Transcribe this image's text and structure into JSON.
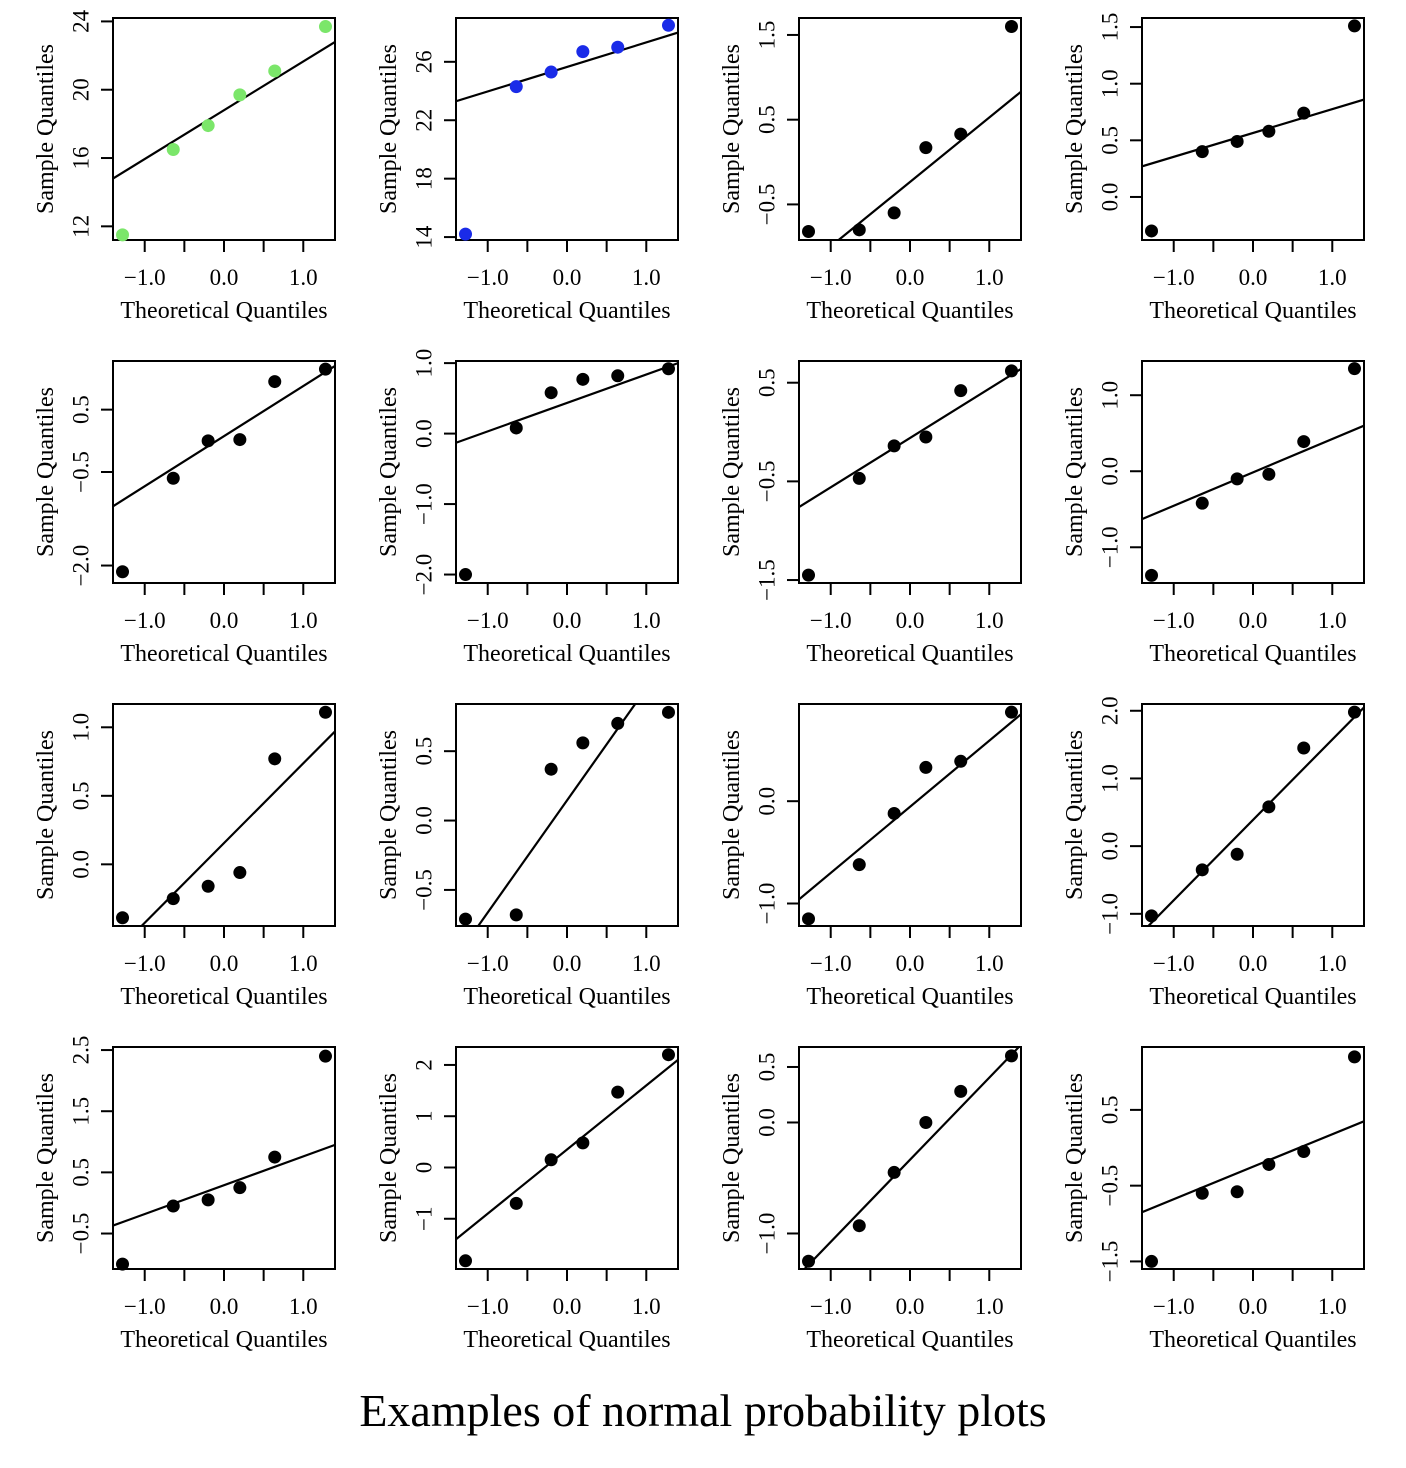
{
  "caption": "Examples of normal probability plots",
  "chart_data": [
    {
      "type": "scatter",
      "xlabel": "Theoretical Quantiles",
      "ylabel": "Sample Quantiles",
      "point_color": "#7be66a",
      "x": [
        -1.28,
        -0.64,
        -0.2,
        0.2,
        0.64,
        1.28
      ],
      "y": [
        11.5,
        16.5,
        17.9,
        19.7,
        21.1,
        23.7
      ],
      "xlim": [
        -1.4,
        1.4
      ],
      "ylim": [
        11.2,
        24.2
      ],
      "xticks": [
        -1.0,
        0.0,
        1.0
      ],
      "xtick_labels": [
        "−1.0",
        "0.0",
        "1.0"
      ],
      "yticks": [
        12,
        16,
        20,
        24
      ],
      "ytick_labels": [
        "12",
        "16",
        "20",
        "24"
      ],
      "line": [
        [
          -1.4,
          14.8
        ],
        [
          1.4,
          22.8
        ]
      ]
    },
    {
      "type": "scatter",
      "xlabel": "Theoretical Quantiles",
      "ylabel": "Sample Quantiles",
      "point_color": "#1a2be8",
      "x": [
        -1.28,
        -0.64,
        -0.2,
        0.2,
        0.64,
        1.28
      ],
      "y": [
        14.2,
        24.3,
        25.3,
        26.7,
        27.0,
        28.5
      ],
      "xlim": [
        -1.4,
        1.4
      ],
      "ylim": [
        13.8,
        29.0
      ],
      "xticks": [
        -1.0,
        0.0,
        1.0
      ],
      "xtick_labels": [
        "−1.0",
        "0.0",
        "1.0"
      ],
      "yticks": [
        14,
        18,
        22,
        26
      ],
      "ytick_labels": [
        "14",
        "18",
        "22",
        "26"
      ],
      "line": [
        [
          -1.4,
          23.3
        ],
        [
          1.4,
          28.0
        ]
      ]
    },
    {
      "type": "scatter",
      "xlabel": "Theoretical Quantiles",
      "ylabel": "Sample Quantiles",
      "point_color": "#000000",
      "x": [
        -1.28,
        -0.64,
        -0.2,
        0.2,
        0.64,
        1.28
      ],
      "y": [
        -0.82,
        -0.8,
        -0.6,
        0.17,
        0.33,
        1.6
      ],
      "xlim": [
        -1.4,
        1.4
      ],
      "ylim": [
        -0.92,
        1.7
      ],
      "xticks": [
        -1.0,
        0.0,
        1.0
      ],
      "xtick_labels": [
        "−1.0",
        "0.0",
        "1.0"
      ],
      "yticks": [
        -0.5,
        0.5,
        1.5
      ],
      "ytick_labels": [
        "−0.5",
        "0.5",
        "1.5"
      ],
      "line": [
        [
          -1.4,
          -1.3
        ],
        [
          1.4,
          0.83
        ]
      ]
    },
    {
      "type": "scatter",
      "xlabel": "Theoretical Quantiles",
      "ylabel": "Sample Quantiles",
      "point_color": "#000000",
      "x": [
        -1.28,
        -0.64,
        -0.2,
        0.2,
        0.64,
        1.28
      ],
      "y": [
        -0.3,
        0.4,
        0.49,
        0.58,
        0.74,
        1.51
      ],
      "xlim": [
        -1.4,
        1.4
      ],
      "ylim": [
        -0.38,
        1.58
      ],
      "xticks": [
        -1.0,
        0.0,
        1.0
      ],
      "xtick_labels": [
        "−1.0",
        "0.0",
        "1.0"
      ],
      "yticks": [
        0.0,
        0.5,
        1.0,
        1.5
      ],
      "ytick_labels": [
        "0.0",
        "0.5",
        "1.0",
        "1.5"
      ],
      "line": [
        [
          -1.4,
          0.27
        ],
        [
          1.4,
          0.86
        ]
      ]
    },
    {
      "type": "scatter",
      "xlabel": "Theoretical Quantiles",
      "ylabel": "Sample Quantiles",
      "point_color": "#000000",
      "x": [
        -1.28,
        -0.64,
        -0.2,
        0.2,
        0.64,
        1.28
      ],
      "y": [
        -2.1,
        -0.6,
        0.0,
        0.02,
        0.95,
        1.15
      ],
      "xlim": [
        -1.4,
        1.4
      ],
      "ylim": [
        -2.28,
        1.28
      ],
      "xticks": [
        -1.0,
        0.0,
        1.0
      ],
      "xtick_labels": [
        "−1.0",
        "0.0",
        "1.0"
      ],
      "yticks": [
        -2.0,
        -0.5,
        0.5
      ],
      "ytick_labels": [
        "−2.0",
        "−0.5",
        "0.5"
      ],
      "line": [
        [
          -1.4,
          -1.05
        ],
        [
          1.4,
          1.2
        ]
      ]
    },
    {
      "type": "scatter",
      "xlabel": "Theoretical Quantiles",
      "ylabel": "Sample Quantiles",
      "point_color": "#000000",
      "x": [
        -1.28,
        -0.64,
        -0.2,
        0.2,
        0.64,
        1.28
      ],
      "y": [
        -2.0,
        0.08,
        0.58,
        0.77,
        0.82,
        0.92
      ],
      "xlim": [
        -1.4,
        1.4
      ],
      "ylim": [
        -2.12,
        1.03
      ],
      "xticks": [
        -1.0,
        0.0,
        1.0
      ],
      "xtick_labels": [
        "−1.0",
        "0.0",
        "1.0"
      ],
      "yticks": [
        -2.0,
        -1.0,
        0.0,
        1.0
      ],
      "ytick_labels": [
        "−2.0",
        "−1.0",
        "0.0",
        "1.0"
      ],
      "line": [
        [
          -1.4,
          -0.13
        ],
        [
          1.4,
          1.0
        ]
      ]
    },
    {
      "type": "scatter",
      "xlabel": "Theoretical Quantiles",
      "ylabel": "Sample Quantiles",
      "point_color": "#000000",
      "x": [
        -1.28,
        -0.64,
        -0.2,
        0.2,
        0.64,
        1.28
      ],
      "y": [
        -1.45,
        -0.47,
        -0.14,
        -0.05,
        0.42,
        0.62
      ],
      "xlim": [
        -1.4,
        1.4
      ],
      "ylim": [
        -1.53,
        0.72
      ],
      "xticks": [
        -1.0,
        0.0,
        1.0
      ],
      "xtick_labels": [
        "−1.0",
        "0.0",
        "1.0"
      ],
      "yticks": [
        -1.5,
        -0.5,
        0.5
      ],
      "ytick_labels": [
        "−1.5",
        "−0.5",
        "0.5"
      ],
      "line": [
        [
          -1.4,
          -0.76
        ],
        [
          1.4,
          0.64
        ]
      ]
    },
    {
      "type": "scatter",
      "xlabel": "Theoretical Quantiles",
      "ylabel": "Sample Quantiles",
      "point_color": "#000000",
      "x": [
        -1.28,
        -0.64,
        -0.2,
        0.2,
        0.64,
        1.28
      ],
      "y": [
        -1.37,
        -0.42,
        -0.1,
        -0.04,
        0.39,
        1.35
      ],
      "xlim": [
        -1.4,
        1.4
      ],
      "ylim": [
        -1.47,
        1.45
      ],
      "xticks": [
        -1.0,
        0.0,
        1.0
      ],
      "xtick_labels": [
        "−1.0",
        "0.0",
        "1.0"
      ],
      "yticks": [
        -1.0,
        0.0,
        1.0
      ],
      "ytick_labels": [
        "−1.0",
        "0.0",
        "1.0"
      ],
      "line": [
        [
          -1.4,
          -0.63
        ],
        [
          1.4,
          0.6
        ]
      ]
    },
    {
      "type": "scatter",
      "xlabel": "Theoretical Quantiles",
      "ylabel": "Sample Quantiles",
      "point_color": "#000000",
      "x": [
        -1.28,
        -0.64,
        -0.2,
        0.2,
        0.64,
        1.28
      ],
      "y": [
        -0.39,
        -0.25,
        -0.16,
        -0.06,
        0.77,
        1.11
      ],
      "xlim": [
        -1.4,
        1.4
      ],
      "ylim": [
        -0.45,
        1.17
      ],
      "xticks": [
        -1.0,
        0.0,
        1.0
      ],
      "xtick_labels": [
        "−1.0",
        "0.0",
        "1.0"
      ],
      "yticks": [
        0.0,
        0.5,
        1.0
      ],
      "ytick_labels": [
        "0.0",
        "0.5",
        "1.0"
      ],
      "line": [
        [
          -1.04,
          -0.45
        ],
        [
          1.4,
          0.97
        ]
      ]
    },
    {
      "type": "scatter",
      "xlabel": "Theoretical Quantiles",
      "ylabel": "Sample Quantiles",
      "point_color": "#000000",
      "x": [
        -1.28,
        -0.64,
        -0.2,
        0.2,
        0.64,
        1.28
      ],
      "y": [
        -0.71,
        -0.68,
        0.37,
        0.56,
        0.7,
        0.78
      ],
      "xlim": [
        -1.4,
        1.4
      ],
      "ylim": [
        -0.76,
        0.84
      ],
      "xticks": [
        -1.0,
        0.0,
        1.0
      ],
      "xtick_labels": [
        "−1.0",
        "0.0",
        "1.0"
      ],
      "yticks": [
        -0.5,
        0.0,
        0.5
      ],
      "ytick_labels": [
        "−0.5",
        "0.0",
        "0.5"
      ],
      "line": [
        [
          -1.12,
          -0.76
        ],
        [
          0.86,
          0.84
        ]
      ]
    },
    {
      "type": "scatter",
      "xlabel": "Theoretical Quantiles",
      "ylabel": "Sample Quantiles",
      "point_color": "#000000",
      "x": [
        -1.28,
        -0.64,
        -0.2,
        0.2,
        0.64,
        1.28
      ],
      "y": [
        -1.15,
        -0.62,
        -0.12,
        0.33,
        0.39,
        0.87
      ],
      "xlim": [
        -1.4,
        1.4
      ],
      "ylim": [
        -1.22,
        0.95
      ],
      "xticks": [
        -1.0,
        0.0,
        1.0
      ],
      "xtick_labels": [
        "−1.0",
        "0.0",
        "1.0"
      ],
      "yticks": [
        -1.0,
        0.0
      ],
      "ytick_labels": [
        "−1.0",
        "0.0"
      ],
      "line": [
        [
          -1.4,
          -0.96
        ],
        [
          1.4,
          0.85
        ]
      ]
    },
    {
      "type": "scatter",
      "xlabel": "Theoretical Quantiles",
      "ylabel": "Sample Quantiles",
      "point_color": "#000000",
      "x": [
        -1.28,
        -0.64,
        -0.2,
        0.2,
        0.64,
        1.28
      ],
      "y": [
        -1.03,
        -0.35,
        -0.12,
        0.58,
        1.45,
        1.98
      ],
      "xlim": [
        -1.4,
        1.4
      ],
      "ylim": [
        -1.18,
        2.1
      ],
      "xticks": [
        -1.0,
        0.0,
        1.0
      ],
      "xtick_labels": [
        "−1.0",
        "0.0",
        "1.0"
      ],
      "yticks": [
        -1.0,
        0.0,
        1.0,
        2.0
      ],
      "ytick_labels": [
        "−1.0",
        "0.0",
        "1.0",
        "2.0"
      ],
      "line": [
        [
          -1.32,
          -1.18
        ],
        [
          1.4,
          2.05
        ]
      ]
    },
    {
      "type": "scatter",
      "xlabel": "Theoretical Quantiles",
      "ylabel": "Sample Quantiles",
      "point_color": "#000000",
      "x": [
        -1.28,
        -0.64,
        -0.2,
        0.2,
        0.64,
        1.28
      ],
      "y": [
        -1.0,
        -0.05,
        0.05,
        0.25,
        0.75,
        2.4
      ],
      "xlim": [
        -1.4,
        1.4
      ],
      "ylim": [
        -1.08,
        2.55
      ],
      "xticks": [
        -1.0,
        0.0,
        1.0
      ],
      "xtick_labels": [
        "−1.0",
        "0.0",
        "1.0"
      ],
      "yticks": [
        -0.5,
        0.5,
        1.5,
        2.5
      ],
      "ytick_labels": [
        "−0.5",
        "0.5",
        "1.5",
        "2.5"
      ],
      "line": [
        [
          -1.4,
          -0.37
        ],
        [
          1.4,
          0.95
        ]
      ]
    },
    {
      "type": "scatter",
      "xlabel": "Theoretical Quantiles",
      "ylabel": "Sample Quantiles",
      "point_color": "#000000",
      "x": [
        -1.28,
        -0.64,
        -0.2,
        0.2,
        0.64,
        1.28
      ],
      "y": [
        -1.82,
        -0.7,
        0.15,
        0.48,
        1.47,
        2.2
      ],
      "xlim": [
        -1.4,
        1.4
      ],
      "ylim": [
        -1.98,
        2.35
      ],
      "xticks": [
        -1.0,
        0.0,
        1.0
      ],
      "xtick_labels": [
        "−1.0",
        "0.0",
        "1.0"
      ],
      "yticks": [
        -1,
        0,
        1,
        2
      ],
      "ytick_labels": [
        "−1",
        "0",
        "1",
        "2"
      ],
      "line": [
        [
          -1.4,
          -1.4
        ],
        [
          1.4,
          2.1
        ]
      ]
    },
    {
      "type": "scatter",
      "xlabel": "Theoretical Quantiles",
      "ylabel": "Sample Quantiles",
      "point_color": "#000000",
      "x": [
        -1.28,
        -0.64,
        -0.2,
        0.2,
        0.64,
        1.28
      ],
      "y": [
        -1.25,
        -0.93,
        -0.45,
        0.0,
        0.28,
        0.6
      ],
      "xlim": [
        -1.4,
        1.4
      ],
      "ylim": [
        -1.32,
        0.68
      ],
      "xticks": [
        -1.0,
        0.0,
        1.0
      ],
      "xtick_labels": [
        "−1.0",
        "0.0",
        "1.0"
      ],
      "yticks": [
        -1.0,
        0.0,
        0.5
      ],
      "ytick_labels": [
        "−1.0",
        "0.0",
        "0.5"
      ],
      "line": [
        [
          -1.33,
          -1.32
        ],
        [
          1.4,
          0.7
        ]
      ]
    },
    {
      "type": "scatter",
      "xlabel": "Theoretical Quantiles",
      "ylabel": "Sample Quantiles",
      "point_color": "#000000",
      "x": [
        -1.28,
        -0.64,
        -0.2,
        0.2,
        0.64,
        1.28
      ],
      "y": [
        -1.5,
        -0.6,
        -0.58,
        -0.22,
        -0.05,
        1.2
      ],
      "xlim": [
        -1.4,
        1.4
      ],
      "ylim": [
        -1.6,
        1.33
      ],
      "xticks": [
        -1.0,
        0.0,
        1.0
      ],
      "xtick_labels": [
        "−1.0",
        "0.0",
        "1.0"
      ],
      "yticks": [
        -1.5,
        -0.5,
        0.5
      ],
      "ytick_labels": [
        "−1.5",
        "−0.5",
        "0.5"
      ],
      "line": [
        [
          -1.4,
          -0.85
        ],
        [
          1.4,
          0.35
        ]
      ]
    }
  ]
}
